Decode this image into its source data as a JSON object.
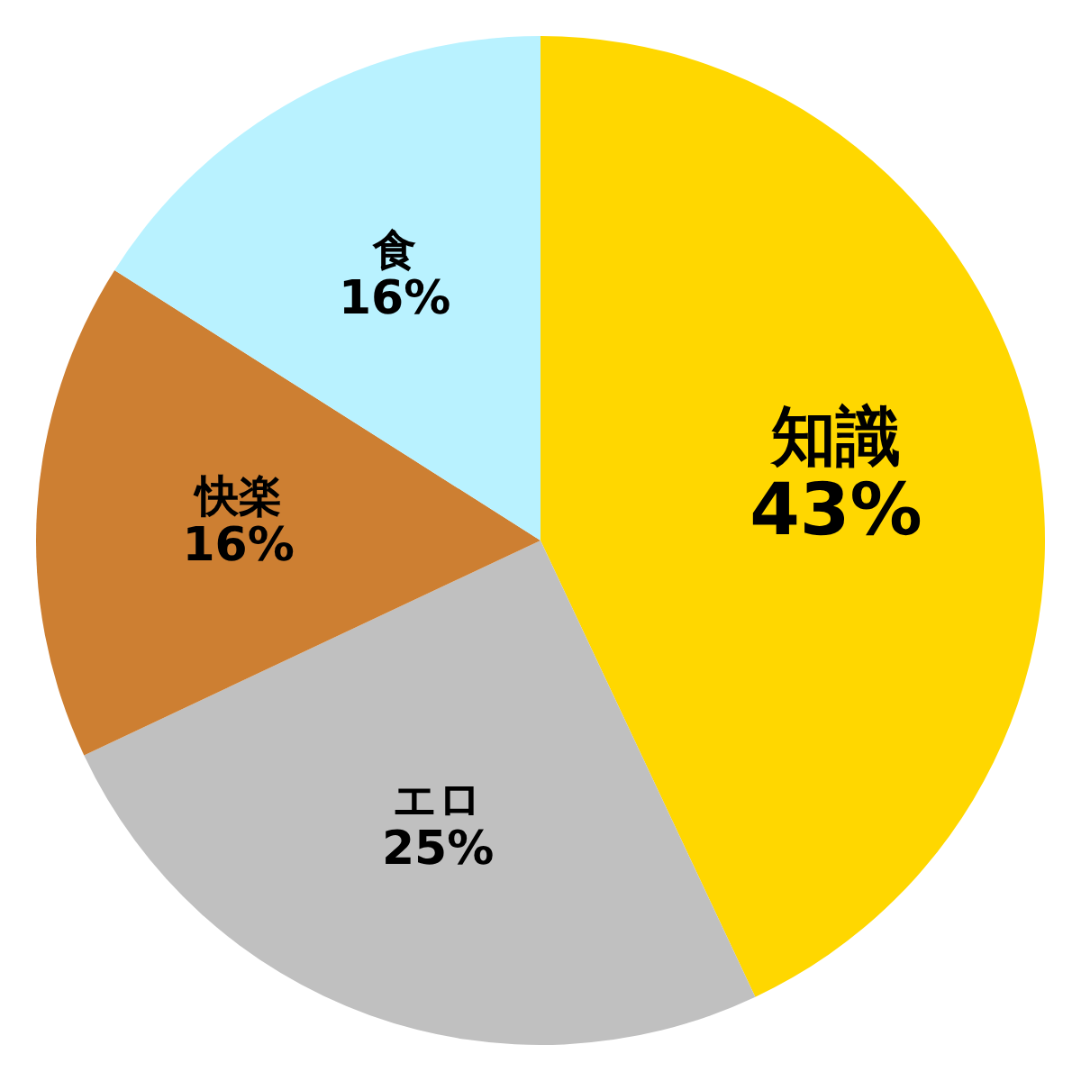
{
  "chart_data": {
    "type": "pie",
    "categories": [
      "知識",
      "エロ",
      "快楽",
      "食"
    ],
    "values": [
      43,
      25,
      16,
      16
    ],
    "colors": [
      "#ffd700",
      "#c0c0c0",
      "#cd7f32",
      "#b9f2ff"
    ],
    "value_labels": [
      "43%",
      "25%",
      "16%",
      "16%"
    ]
  }
}
